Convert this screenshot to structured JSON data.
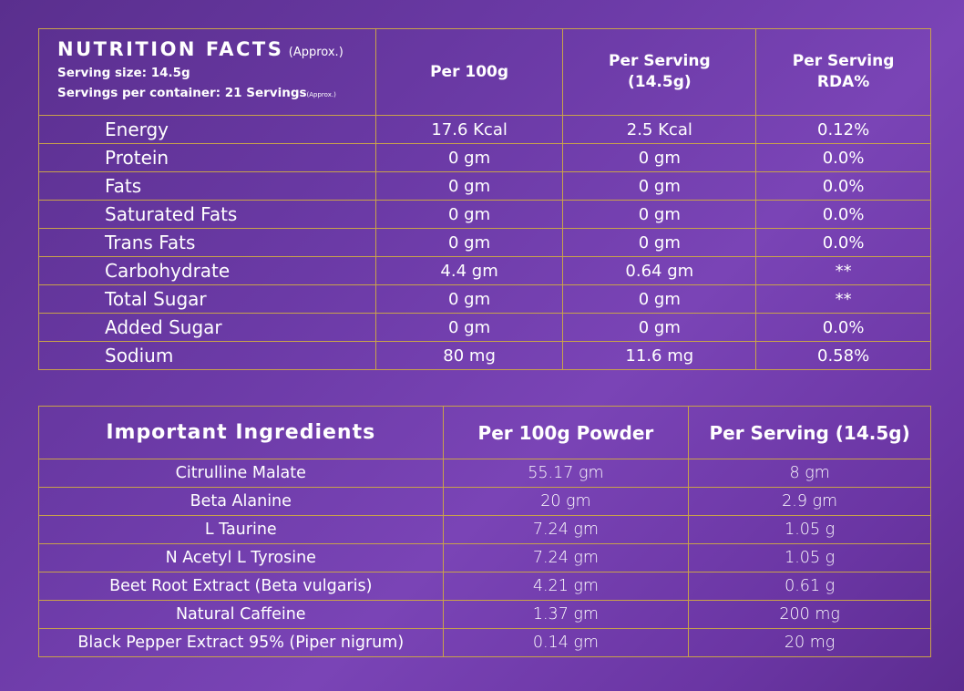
{
  "nutrition": {
    "title": "NUTRITION FACTS",
    "title_note": "(Approx.)",
    "serving_size": "Serving size: 14.5g",
    "servings_per_container": "Servings per container: 21 Servings",
    "servings_note": "(Approx.)",
    "columns": [
      "Per 100g",
      "Per Serving",
      "(14.5g)",
      "Per Serving",
      "RDA%"
    ],
    "rows": [
      {
        "name": "Energy",
        "per100": "17.6 Kcal",
        "perServing": "2.5 Kcal",
        "rda": "0.12%"
      },
      {
        "name": "Protein",
        "per100": "0 gm",
        "perServing": "0 gm",
        "rda": "0.0%"
      },
      {
        "name": "Fats",
        "per100": "0 gm",
        "perServing": "0 gm",
        "rda": "0.0%"
      },
      {
        "name": "Saturated Fats",
        "per100": "0 gm",
        "perServing": "0 gm",
        "rda": "0.0%"
      },
      {
        "name": "Trans Fats",
        "per100": "0 gm",
        "perServing": "0 gm",
        "rda": "0.0%"
      },
      {
        "name": "Carbohydrate",
        "per100": "4.4 gm",
        "perServing": "0.64 gm",
        "rda": "**"
      },
      {
        "name": "Total Sugar",
        "per100": "0 gm",
        "perServing": "0 gm",
        "rda": "**"
      },
      {
        "name": "Added Sugar",
        "per100": "0 gm",
        "perServing": "0 gm",
        "rda": "0.0%"
      },
      {
        "name": "Sodium",
        "per100": "80 mg",
        "perServing": "11.6 mg",
        "rda": "0.58%"
      }
    ]
  },
  "ingredients": {
    "header": [
      "Important Ingredients",
      "Per 100g Powder",
      "Per Serving (14.5g)"
    ],
    "rows": [
      {
        "name": "Citrulline Malate",
        "per100": "55.17 gm",
        "perServing": "8 gm"
      },
      {
        "name": "Beta Alanine",
        "per100": "20 gm",
        "perServing": "2.9 gm"
      },
      {
        "name": "L Taurine",
        "per100": "7.24 gm",
        "perServing": "1.05 g"
      },
      {
        "name": "N Acetyl L Tyrosine",
        "per100": "7.24 gm",
        "perServing": "1.05 g"
      },
      {
        "name": "Beet Root Extract (Beta vulgaris)",
        "per100": "4.21 gm",
        "perServing": "0.61 g"
      },
      {
        "name": "Natural Caffeine",
        "per100": "1.37 gm",
        "perServing": "200 mg"
      },
      {
        "name": "Black Pepper Extract 95% (Piper nigrum)",
        "per100": "0.14 gm",
        "perServing": "20 mg"
      }
    ]
  },
  "colors": {
    "border": "#c9a24a",
    "background": "#6b3aa6",
    "text": "#ffffff"
  }
}
